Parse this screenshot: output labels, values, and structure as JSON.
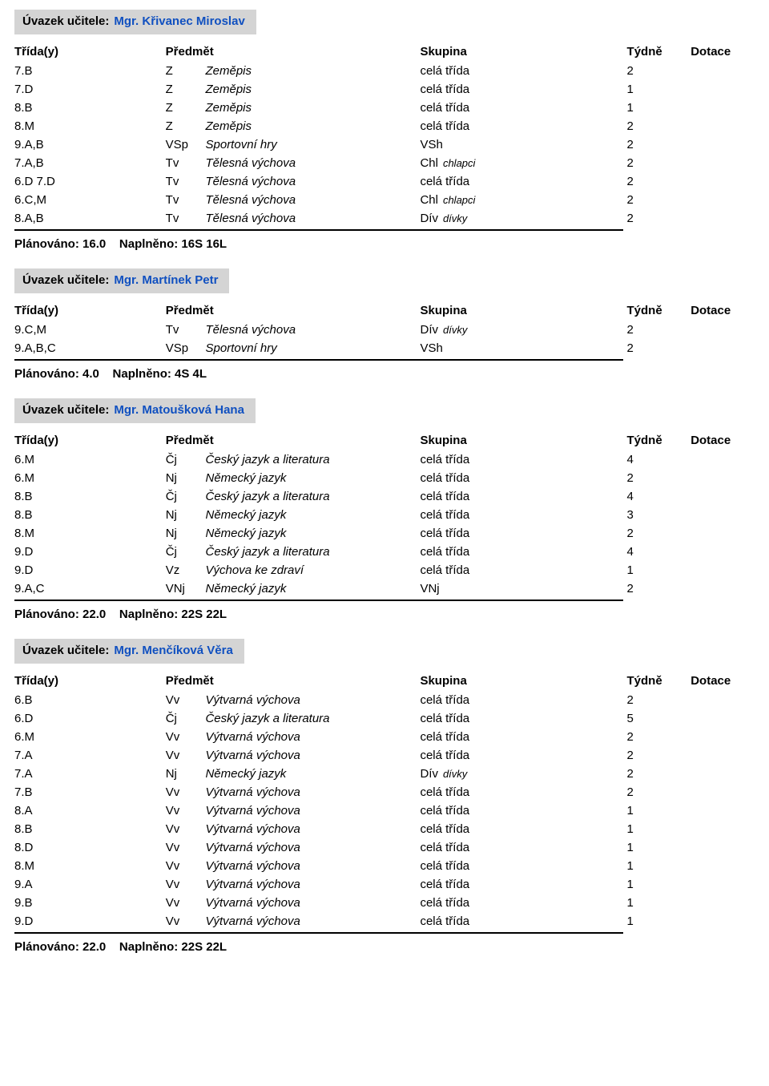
{
  "labels": {
    "header_prefix": "Úvazek učitele:",
    "col_trida": "Třída(y)",
    "col_predmet": "Předmět",
    "col_skupina": "Skupina",
    "col_tydne": "Týdně",
    "col_dotace": "Dotace",
    "planovano": "Plánováno:",
    "naplneno": "Naplněno:"
  },
  "sections": [
    {
      "teacher": "Mgr. Křivanec Miroslav",
      "plan": "16.0",
      "fill": "16S 16L",
      "rows": [
        {
          "trida": "7.B",
          "code": "Z",
          "full": "Zeměpis",
          "skup": "celá třída",
          "skup_sub": "",
          "tydne": "2"
        },
        {
          "trida": "7.D",
          "code": "Z",
          "full": "Zeměpis",
          "skup": "celá třída",
          "skup_sub": "",
          "tydne": "1"
        },
        {
          "trida": "8.B",
          "code": "Z",
          "full": "Zeměpis",
          "skup": "celá třída",
          "skup_sub": "",
          "tydne": "1"
        },
        {
          "trida": "8.M",
          "code": "Z",
          "full": "Zeměpis",
          "skup": "celá třída",
          "skup_sub": "",
          "tydne": "2"
        },
        {
          "trida": "9.A,B",
          "code": "VSp",
          "full": "Sportovní hry",
          "skup": "VSh",
          "skup_sub": "",
          "tydne": "2"
        },
        {
          "trida": "7.A,B",
          "code": "Tv",
          "full": "Tělesná výchova",
          "skup": "Chl",
          "skup_sub": "chlapci",
          "tydne": "2"
        },
        {
          "trida": "6.D 7.D",
          "code": "Tv",
          "full": "Tělesná výchova",
          "skup": "celá třída",
          "skup_sub": "",
          "tydne": "2"
        },
        {
          "trida": "6.C,M",
          "code": "Tv",
          "full": "Tělesná výchova",
          "skup": "Chl",
          "skup_sub": "chlapci",
          "tydne": "2"
        },
        {
          "trida": "8.A,B",
          "code": "Tv",
          "full": "Tělesná výchova",
          "skup": "Dív",
          "skup_sub": "dívky",
          "tydne": "2"
        }
      ]
    },
    {
      "teacher": "Mgr. Martínek Petr",
      "plan": "4.0",
      "fill": "4S 4L",
      "rows": [
        {
          "trida": "9.C,M",
          "code": "Tv",
          "full": "Tělesná výchova",
          "skup": "Dív",
          "skup_sub": "dívky",
          "tydne": "2"
        },
        {
          "trida": "9.A,B,C",
          "code": "VSp",
          "full": "Sportovní hry",
          "skup": "VSh",
          "skup_sub": "",
          "tydne": "2"
        }
      ]
    },
    {
      "teacher": "Mgr. Matoušková Hana",
      "plan": "22.0",
      "fill": "22S 22L",
      "rows": [
        {
          "trida": "6.M",
          "code": "Čj",
          "full": "Český jazyk a literatura",
          "skup": "celá třída",
          "skup_sub": "",
          "tydne": "4"
        },
        {
          "trida": "6.M",
          "code": "Nj",
          "full": "Německý jazyk",
          "skup": "celá třída",
          "skup_sub": "",
          "tydne": "2"
        },
        {
          "trida": "8.B",
          "code": "Čj",
          "full": "Český jazyk a literatura",
          "skup": "celá třída",
          "skup_sub": "",
          "tydne": "4"
        },
        {
          "trida": "8.B",
          "code": "Nj",
          "full": "Německý jazyk",
          "skup": "celá třída",
          "skup_sub": "",
          "tydne": "3"
        },
        {
          "trida": "8.M",
          "code": "Nj",
          "full": "Německý jazyk",
          "skup": "celá třída",
          "skup_sub": "",
          "tydne": "2"
        },
        {
          "trida": "9.D",
          "code": "Čj",
          "full": "Český jazyk a literatura",
          "skup": "celá třída",
          "skup_sub": "",
          "tydne": "4"
        },
        {
          "trida": "9.D",
          "code": "Vz",
          "full": "Výchova ke zdraví",
          "skup": "celá třída",
          "skup_sub": "",
          "tydne": "1"
        },
        {
          "trida": "9.A,C",
          "code": "VNj",
          "full": "Německý jazyk",
          "skup": "VNj",
          "skup_sub": "",
          "tydne": "2"
        }
      ]
    },
    {
      "teacher": "Mgr. Menčíková Věra",
      "plan": "22.0",
      "fill": "22S 22L",
      "rows": [
        {
          "trida": "6.B",
          "code": "Vv",
          "full": "Výtvarná výchova",
          "skup": "celá třída",
          "skup_sub": "",
          "tydne": "2"
        },
        {
          "trida": "6.D",
          "code": "Čj",
          "full": "Český jazyk a literatura",
          "skup": "celá třída",
          "skup_sub": "",
          "tydne": "5"
        },
        {
          "trida": "6.M",
          "code": "Vv",
          "full": "Výtvarná výchova",
          "skup": "celá třída",
          "skup_sub": "",
          "tydne": "2"
        },
        {
          "trida": "7.A",
          "code": "Vv",
          "full": "Výtvarná výchova",
          "skup": "celá třída",
          "skup_sub": "",
          "tydne": "2"
        },
        {
          "trida": "7.A",
          "code": "Nj",
          "full": "Německý jazyk",
          "skup": "Dív",
          "skup_sub": "dívky",
          "tydne": "2"
        },
        {
          "trida": "7.B",
          "code": "Vv",
          "full": "Výtvarná výchova",
          "skup": "celá třída",
          "skup_sub": "",
          "tydne": "2"
        },
        {
          "trida": "8.A",
          "code": "Vv",
          "full": "Výtvarná výchova",
          "skup": "celá třída",
          "skup_sub": "",
          "tydne": "1"
        },
        {
          "trida": "8.B",
          "code": "Vv",
          "full": "Výtvarná výchova",
          "skup": "celá třída",
          "skup_sub": "",
          "tydne": "1"
        },
        {
          "trida": "8.D",
          "code": "Vv",
          "full": "Výtvarná výchova",
          "skup": "celá třída",
          "skup_sub": "",
          "tydne": "1"
        },
        {
          "trida": "8.M",
          "code": "Vv",
          "full": "Výtvarná výchova",
          "skup": "celá třída",
          "skup_sub": "",
          "tydne": "1"
        },
        {
          "trida": "9.A",
          "code": "Vv",
          "full": "Výtvarná výchova",
          "skup": "celá třída",
          "skup_sub": "",
          "tydne": "1"
        },
        {
          "trida": "9.B",
          "code": "Vv",
          "full": "Výtvarná výchova",
          "skup": "celá třída",
          "skup_sub": "",
          "tydne": "1"
        },
        {
          "trida": "9.D",
          "code": "Vv",
          "full": "Výtvarná výchova",
          "skup": "celá třída",
          "skup_sub": "",
          "tydne": "1"
        }
      ]
    }
  ]
}
